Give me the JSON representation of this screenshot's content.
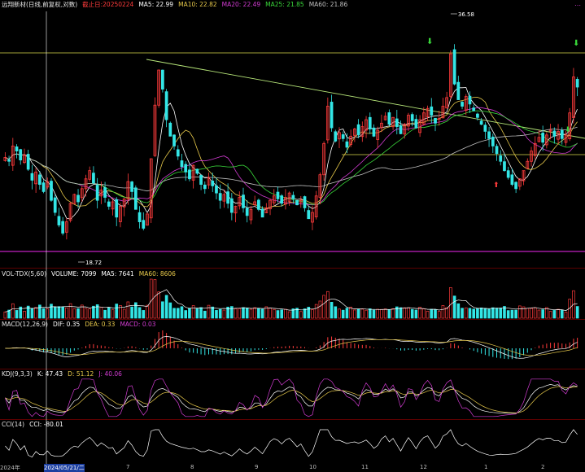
{
  "colors": {
    "bg": "#000000",
    "up": "#ff3b3b",
    "down": "#33e6e6",
    "ma5": "#ffffff",
    "ma10": "#e6c84a",
    "ma20": "#d13bd1",
    "ma25": "#39d83a",
    "ma60": "#bfbfbf",
    "trend": "#b8e87a",
    "hline": "#d8d84a",
    "support": "#c020c0"
  },
  "main": {
    "stock_name": "远翔新材(日线,前复权,对数)",
    "cutoff": "截止日:20250224",
    "ma5": "MA5: 22.99",
    "ma10": "MA10: 22.82",
    "ma20": "MA20: 22.49",
    "ma25": "MA25: 21.85",
    "ma60": "MA60: 21.86",
    "high_label": "36.58",
    "low_label": "18.72",
    "icons": [
      "down-arrow-green-icon",
      "up-arrow-red-icon",
      "menu-icon"
    ]
  },
  "vol": {
    "title": "VOL-TDX(5,60)",
    "volume": "VOLUME: 7099",
    "ma5": "MA5: 7641",
    "ma60": "MA60: 8606"
  },
  "macd": {
    "title": "MACD(12,26,9)",
    "dif": "DIF: 0.35",
    "dea": "DEA: 0.33",
    "macd": "MACD: 0.03"
  },
  "kdj": {
    "title": "KDJ(9,3,3)",
    "k": "K: 47.43",
    "d": "D: 51.12",
    "j": "J: 40.06"
  },
  "cci": {
    "title": "CCI(14)",
    "cci": "CCI: -80.01"
  },
  "xaxis": {
    "ticks": [
      "2024年",
      "2024/05/21/二",
      "7",
      "8",
      "9",
      "10",
      "11",
      "12",
      "1",
      "2"
    ]
  },
  "chart_data": {
    "type": "candlestick",
    "title": "远翔新材(日线,前复权,对数)",
    "ylim": [
      18.72,
      36.58
    ],
    "annotations": [
      "36.58",
      "18.72"
    ],
    "x_ticks": [
      "2024年",
      "2024/05/21/二",
      "7",
      "8",
      "9",
      "10",
      "11",
      "12",
      "1",
      "2"
    ],
    "indicators": [
      "VOL-TDX(5,60)",
      "MACD(12,26,9)",
      "KDJ(9,3,3)",
      "CCI(14)"
    ],
    "last_values": {
      "MA5": 22.99,
      "MA10": 22.82,
      "MA20": 22.49,
      "MA25": 21.85,
      "MA60": 21.86,
      "VOLUME": 7099,
      "VOL_MA5": 7641,
      "VOL_MA60": 8606,
      "DIF": 0.35,
      "DEA": 0.33,
      "MACD": 0.03,
      "K": 47.43,
      "D": 51.12,
      "J": 40.06,
      "CCI": -80.01
    },
    "close_series": [
      24.1,
      23.8,
      25.0,
      24.6,
      23.9,
      24.3,
      23.2,
      22.4,
      23.0,
      22.1,
      21.6,
      22.3,
      21.0,
      20.2,
      19.4,
      18.9,
      19.6,
      20.8,
      21.4,
      20.9,
      21.8,
      22.5,
      23.1,
      22.2,
      21.0,
      21.7,
      21.2,
      20.6,
      20.9,
      19.9,
      20.6,
      21.1,
      22.3,
      21.6,
      20.4,
      19.6,
      19.2,
      20.1,
      24.0,
      28.5,
      31.9,
      30.0,
      27.2,
      25.8,
      25.0,
      24.2,
      23.4,
      23.0,
      22.5,
      23.5,
      22.9,
      22.1,
      21.8,
      22.6,
      22.0,
      21.5,
      21.0,
      21.4,
      20.8,
      20.2,
      20.6,
      21.2,
      20.5,
      20.0,
      20.4,
      20.9,
      20.4,
      19.9,
      20.5,
      21.0,
      21.3,
      21.1,
      20.8,
      21.2,
      21.5,
      21.1,
      20.7,
      21.0,
      20.5,
      19.8,
      20.2,
      21.3,
      22.8,
      25.2,
      28.4,
      26.5,
      25.4,
      26.1,
      25.6,
      24.9,
      25.8,
      26.4,
      25.9,
      26.6,
      27.2,
      26.4,
      25.8,
      26.3,
      26.9,
      27.5,
      26.8,
      27.4,
      26.6,
      26.0,
      26.8,
      27.6,
      27.1,
      26.5,
      27.2,
      27.8,
      28.2,
      27.6,
      26.9,
      27.3,
      28.4,
      29.2,
      33.6,
      30.5,
      29.0,
      28.4,
      29.3,
      28.6,
      28.0,
      27.4,
      26.8,
      26.2,
      25.6,
      25.0,
      24.4,
      23.8,
      23.1,
      22.6,
      22.1,
      21.8,
      22.5,
      23.1,
      23.8,
      24.6,
      25.2,
      25.7,
      25.3,
      25.9,
      26.3,
      25.8,
      26.2,
      25.6,
      25.9,
      27.8,
      31.2,
      30.2
    ]
  }
}
